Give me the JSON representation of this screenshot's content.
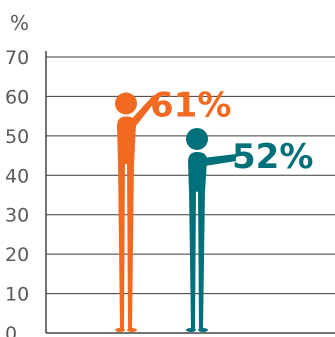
{
  "chart_data": {
    "type": "bar",
    "categories": [
      "",
      ""
    ],
    "values": [
      61,
      52
    ],
    "data_labels": [
      "61%",
      "52%"
    ],
    "ylabel": "%",
    "ylim": [
      0,
      70
    ],
    "yticks": [
      0,
      10,
      20,
      30,
      40,
      50,
      60,
      70
    ],
    "grid": true,
    "mark_style": "human-figure",
    "series_colors": [
      "#f26a21",
      "#00707a"
    ]
  }
}
